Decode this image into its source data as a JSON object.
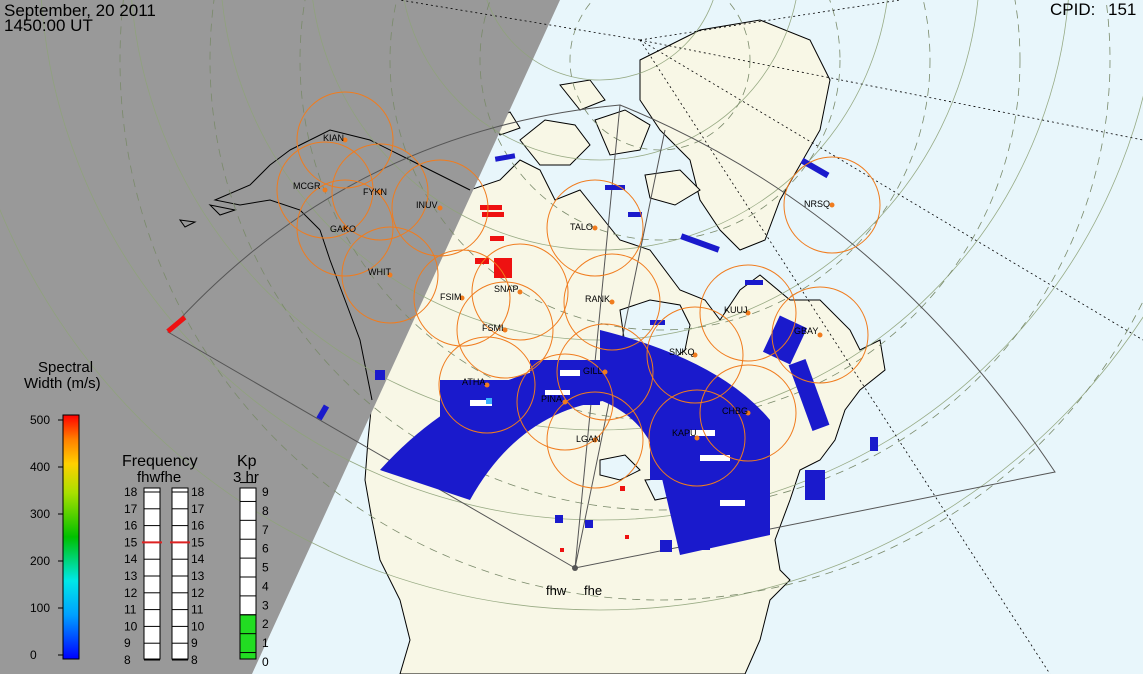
{
  "header": {
    "date": "September, 20 2011",
    "time": "1450:00 UT",
    "cpid_label": "CPID:",
    "cpid_value": "151"
  },
  "radars": {
    "fhw": "fhw",
    "fhe": "fhe"
  },
  "stations": [
    "KIAN",
    "MCGR",
    "FYKN",
    "INUV",
    "GAKO",
    "WHIT",
    "TALO",
    "NRSQ",
    "FSIM",
    "SNAP",
    "RANK",
    "KUUJ",
    "FSMI",
    "GBAY",
    "SNKQ",
    "ATHA",
    "GILL",
    "PINA",
    "CHBG",
    "LGAN",
    "KAPU"
  ],
  "spectral_legend": {
    "title_line1": "Spectral",
    "title_line2": "Width (m/s)",
    "ticks": [
      "500",
      "400",
      "300",
      "200",
      "100",
      "0"
    ]
  },
  "frequency_legend": {
    "title": "Frequency",
    "subtitle": "fhwfhe",
    "ticks": [
      "18",
      "17",
      "16",
      "15",
      "14",
      "13",
      "12",
      "11",
      "10",
      "9",
      "8"
    ],
    "fhw_value": 15,
    "fhe_value": 15
  },
  "kp_legend": {
    "title": "Kp",
    "subtitle": "3 hr",
    "ticks": [
      "9",
      "8",
      "7",
      "6",
      "5",
      "4",
      "3",
      "2",
      "1",
      "0"
    ],
    "kp_value": 2
  },
  "colors": {
    "night": "#999999",
    "ocean": "#e8f6fb",
    "land": "#f8f7e6",
    "scatter": "#1a1acc",
    "ring": "#f07c1e",
    "kp_fill": "#22dd22",
    "freq_marker": "#dd2222"
  }
}
